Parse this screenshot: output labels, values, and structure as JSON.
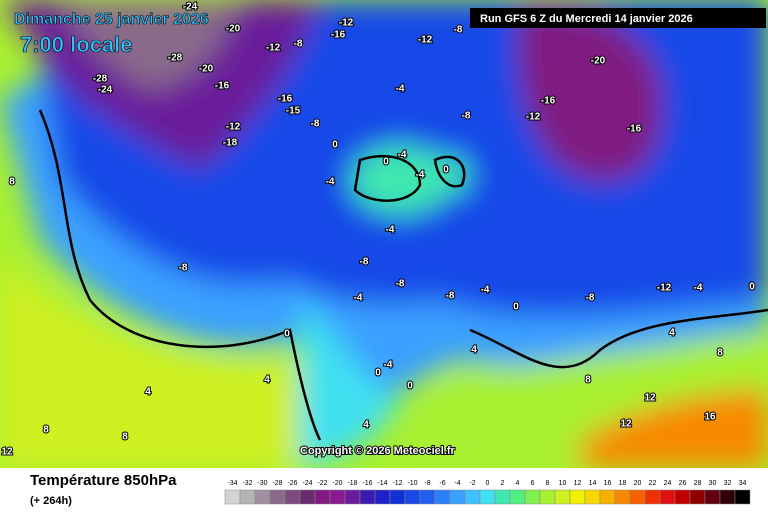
{
  "header": {
    "date": "Dimanche 25 janvier 2026",
    "time": "7:00 locale",
    "run": "Run GFS 6 Z du Mercredi 14 janvier 2026"
  },
  "footer": {
    "title": "Température 850hPa",
    "lead": "(+ 264h)",
    "copyright": "Copyright © 2026 Meteociel.fr"
  },
  "legend": {
    "labels": [
      "-34",
      "-32",
      "-30",
      "-28",
      "-26",
      "-24",
      "-22",
      "-20",
      "-18",
      "-16",
      "-14",
      "-12",
      "-10",
      "-8",
      "-6",
      "-4",
      "-2",
      "0",
      "2",
      "4",
      "6",
      "8",
      "10",
      "12",
      "14",
      "16",
      "18",
      "20",
      "22",
      "24",
      "26",
      "28",
      "30",
      "32",
      "34"
    ],
    "colors": [
      "#d4d4d4",
      "#b4b4b4",
      "#a090a0",
      "#8a6a8a",
      "#7a4a80",
      "#6a2a70",
      "#801a80",
      "#8a1a90",
      "#6a1a9a",
      "#3a1ab0",
      "#2020c8",
      "#1030d8",
      "#1848e8",
      "#2060f0",
      "#2a80f8",
      "#3aa0ff",
      "#40c0ff",
      "#40e0f0",
      "#40e8b0",
      "#50f080",
      "#80f050",
      "#a8f030",
      "#d0f020",
      "#f0f000",
      "#f8d800",
      "#f8b000",
      "#f88800",
      "#f86000",
      "#f03000",
      "#e01010",
      "#c00000",
      "#900000",
      "#600010",
      "#300008",
      "#000000"
    ]
  },
  "map_labels": [
    "-24",
    "-20",
    "-28",
    "-28",
    "-24",
    "-20",
    "-16",
    "-12",
    "-8",
    "-16",
    "-12",
    "-20",
    "-16",
    "-12",
    "-16",
    "-12",
    "-8",
    "-4",
    "-8",
    "-16",
    "-15",
    "-12",
    "-18",
    "-8",
    "0",
    "0",
    "-4",
    "-4",
    "0",
    "-4",
    "-8",
    "-4",
    "-8",
    "-4",
    "-8",
    "-8",
    "-4",
    "0",
    "-8",
    "-12",
    "-4",
    "0",
    "8",
    "0",
    "4",
    "4",
    "8",
    "8",
    "12",
    "4",
    "4",
    "8",
    "12",
    "16",
    "12",
    "-4",
    "0",
    "4",
    "0",
    "8"
  ]
}
